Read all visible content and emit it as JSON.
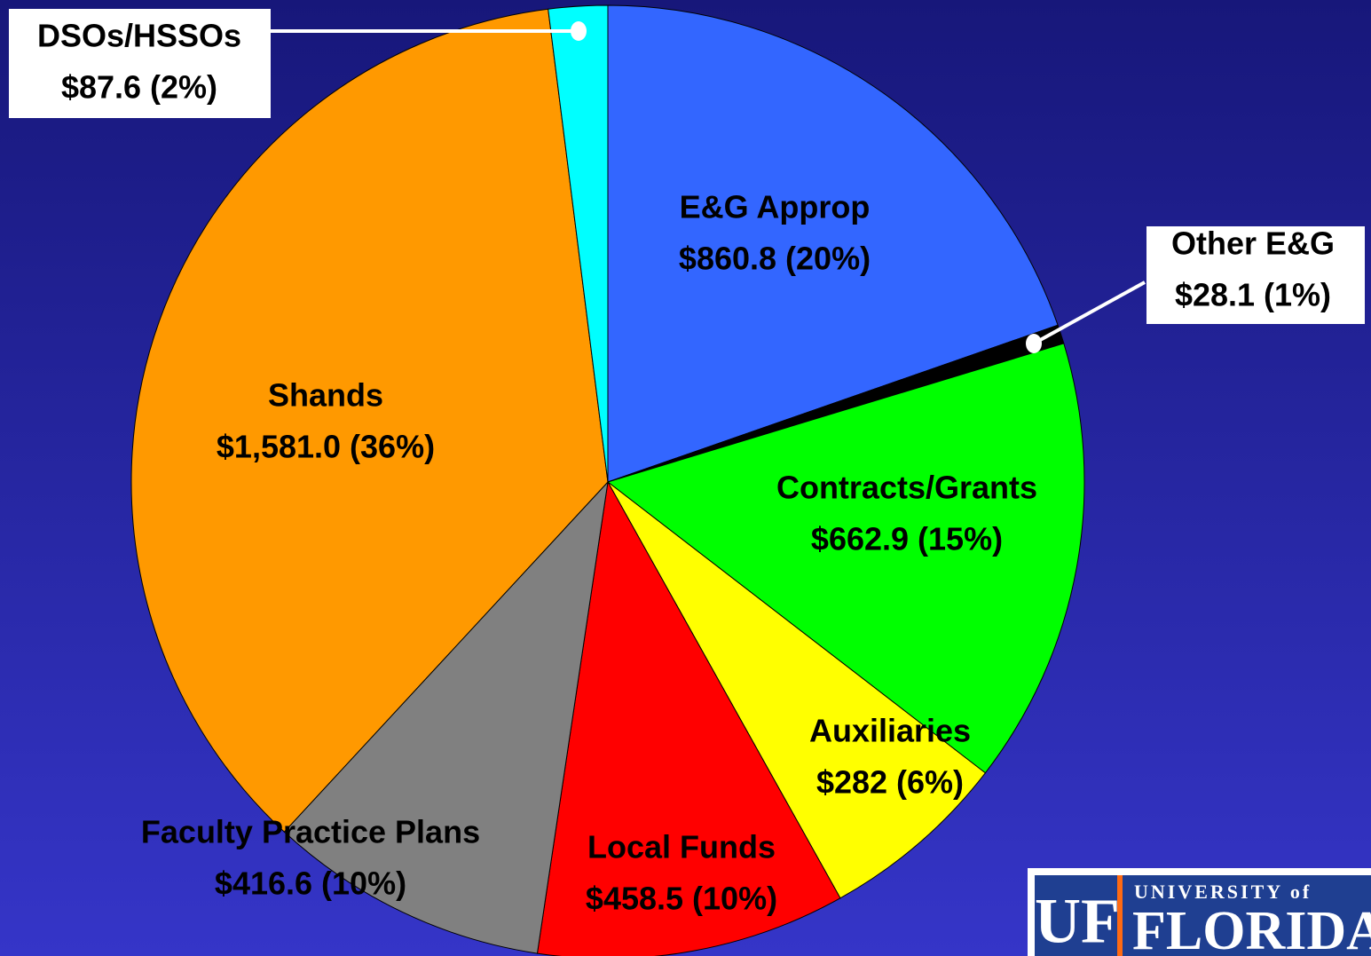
{
  "chart_data": {
    "type": "pie",
    "categories": [
      "E&G Approp",
      "Other E&G",
      "Contracts/Grants",
      "Auxiliaries",
      "Local Funds",
      "Faculty Practice Plans",
      "Shands",
      "DSOs/HSSOs"
    ],
    "values": [
      860.8,
      28.1,
      662.9,
      282,
      458.5,
      416.6,
      1581.0,
      87.6
    ],
    "value_labels": [
      "$860.8 (20%)",
      "$28.1 (1%)",
      "$662.9 (15%)",
      "$282 (6%)",
      "$458.5 (10%)",
      "$416.6 (10%)",
      "$1,581.0 (36%)",
      "$87.6 (2%)"
    ],
    "colors": [
      "#3366ff",
      "#000000",
      "#00ff00",
      "#ffff00",
      "#ff0000",
      "#808080",
      "#ff9900",
      "#00ffff"
    ]
  },
  "logo": {
    "mark": "UF",
    "line1": "UNIVERSITY of",
    "line2": "FLORIDA"
  }
}
